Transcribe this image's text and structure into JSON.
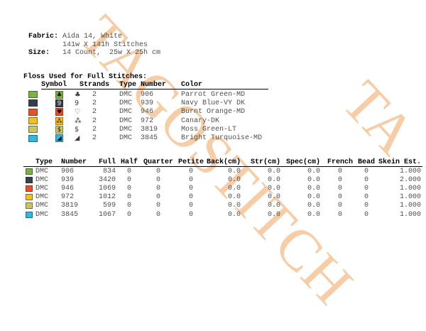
{
  "meta": {
    "fabric_label": "Fabric:",
    "fabric_value_line1": "Aida 14, White",
    "fabric_value_line2": "141w X 141h Stitches",
    "size_label": "Size:",
    "size_value": "14 Count,  25w X 25h cm"
  },
  "floss_table": {
    "title": "Floss Used for Full Stitches:",
    "headers": {
      "symbol": "Symbol",
      "strands": "Strands",
      "type": "Type",
      "number": "Number",
      "color": "Color"
    },
    "rows": [
      {
        "hex": "#7CB243",
        "boxed_fg": "#101010",
        "symbol": "♣",
        "symbol_boxed": "♣",
        "symbol_name": "club-symbol",
        "strands": "2",
        "type": "DMC",
        "number": "906",
        "color_name": "Parrot Green-MD"
      },
      {
        "hex": "#363F4B",
        "boxed_fg": "#e8e8e8",
        "symbol": "9",
        "symbol_boxed": "9",
        "symbol_name": "nine-symbol",
        "strands": "2",
        "type": "DMC",
        "number": "939",
        "color_name": "Navy Blue-VY DK"
      },
      {
        "hex": "#E5512B",
        "boxed_fg": "#1a0c08",
        "symbol": "♡",
        "symbol_boxed": "♥",
        "symbol_name": "heart-symbol",
        "strands": "2",
        "type": "DMC",
        "number": "946",
        "color_name": "Burnt Orange-MD"
      },
      {
        "hex": "#F5BE27",
        "boxed_fg": "#101010",
        "symbol": "⁂",
        "symbol_boxed": "⁂",
        "symbol_name": "three-rings-symbol",
        "strands": "2",
        "type": "DMC",
        "number": "972",
        "color_name": "Canary-DK"
      },
      {
        "hex": "#C9C566",
        "boxed_fg": "#101010",
        "symbol": "$",
        "symbol_boxed": "$",
        "symbol_name": "dollar-symbol",
        "strands": "2",
        "type": "DMC",
        "number": "3819",
        "color_name": "Moss Green-LT"
      },
      {
        "hex": "#2EB9E0",
        "boxed_fg": "#101010",
        "symbol": "◢",
        "symbol_boxed": "◢",
        "symbol_name": "sail-symbol",
        "strands": "2",
        "type": "DMC",
        "number": "3845",
        "color_name": "Bright Turquoise-MD"
      }
    ]
  },
  "usage_table": {
    "headers": [
      "Type",
      "Number",
      "Full",
      "Half",
      "Quarter",
      "Petite",
      "Back(cm)",
      "Str(cm)",
      "Spec(cm)",
      "French",
      "Bead",
      "Skein Est."
    ],
    "rows": [
      {
        "hex": "#7CB243",
        "type": "DMC",
        "number": "906",
        "full": "834",
        "half": "0",
        "quarter": "0",
        "petite": "0",
        "back": "0.0",
        "str": "0.0",
        "spec": "0.0",
        "french": "0",
        "bead": "0",
        "skein": "1.000"
      },
      {
        "hex": "#363F4B",
        "type": "DMC",
        "number": "939",
        "full": "3420",
        "half": "0",
        "quarter": "0",
        "petite": "0",
        "back": "0.0",
        "str": "0.0",
        "spec": "0.0",
        "french": "0",
        "bead": "0",
        "skein": "2.000"
      },
      {
        "hex": "#E5512B",
        "type": "DMC",
        "number": "946",
        "full": "1069",
        "half": "0",
        "quarter": "0",
        "petite": "0",
        "back": "0.0",
        "str": "0.0",
        "spec": "0.0",
        "french": "0",
        "bead": "0",
        "skein": "1.000"
      },
      {
        "hex": "#F5BE27",
        "type": "DMC",
        "number": "972",
        "full": "1012",
        "half": "0",
        "quarter": "0",
        "petite": "0",
        "back": "0.0",
        "str": "0.0",
        "spec": "0.0",
        "french": "0",
        "bead": "0",
        "skein": "1.000"
      },
      {
        "hex": "#C9C566",
        "type": "DMC",
        "number": "3819",
        "full": "599",
        "half": "0",
        "quarter": "0",
        "petite": "0",
        "back": "0.0",
        "str": "0.0",
        "spec": "0.0",
        "french": "0",
        "bead": "0",
        "skein": "1.000"
      },
      {
        "hex": "#2EB9E0",
        "type": "DMC",
        "number": "3845",
        "full": "1067",
        "half": "0",
        "quarter": "0",
        "petite": "0",
        "back": "0.0",
        "str": "0.0",
        "spec": "0.0",
        "french": "0",
        "bead": "0",
        "skein": "1.000"
      }
    ]
  },
  "watermark": {
    "text": "TAGOSTITCH",
    "echo": "TA",
    "color": "#f6cda6"
  }
}
